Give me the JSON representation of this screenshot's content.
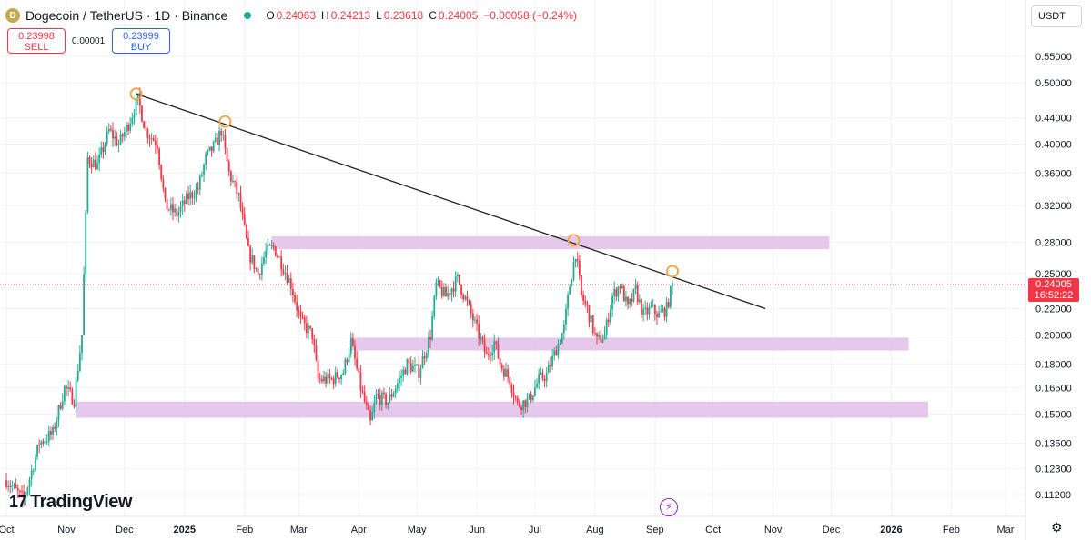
{
  "header": {
    "symbol": "Dogecoin / TetherUS · 1D · Binance",
    "ohlc": [
      {
        "k": "O",
        "v": "0.24063"
      },
      {
        "k": "H",
        "v": "0.24213"
      },
      {
        "k": "L",
        "v": "0.23618"
      },
      {
        "k": "C",
        "v": "0.24005"
      }
    ],
    "change": "−0.00058 (−0.24%)"
  },
  "trade": {
    "sell_price": "0.23998",
    "sell_label": "SELL",
    "spread": "0.00001",
    "buy_price": "0.23999",
    "buy_label": "BUY"
  },
  "currency": "USDT",
  "last_price": {
    "value": "0.24005",
    "countdown": "16:52:22"
  },
  "brand": "TradingView",
  "colors": {
    "up": "#22ab94",
    "down": "#f23645",
    "zone": "#e1bee7",
    "trendline": "#222222",
    "marker": "#f5a142"
  },
  "chart_data": {
    "type": "candlestick",
    "y_scale": "log",
    "ylim": [
      0.105,
      0.58
    ],
    "x_range": [
      "2024-10-01",
      "2026-03-31"
    ],
    "y_ticks": [
      "0.55000",
      "0.50000",
      "0.44000",
      "0.40000",
      "0.36000",
      "0.32000",
      "0.28000",
      "0.25000",
      "0.22000",
      "0.20000",
      "0.18000",
      "0.16500",
      "0.15000",
      "0.13500",
      "0.12300",
      "0.11200"
    ],
    "x_ticks": [
      {
        "date": "2024-10-01",
        "label": "Oct"
      },
      {
        "date": "2024-11-01",
        "label": "Nov"
      },
      {
        "date": "2024-12-01",
        "label": "Dec"
      },
      {
        "date": "2025-01-01",
        "label": "2025"
      },
      {
        "date": "2025-02-01",
        "label": "Feb"
      },
      {
        "date": "2025-03-01",
        "label": "Mar"
      },
      {
        "date": "2025-04-01",
        "label": "Apr"
      },
      {
        "date": "2025-05-01",
        "label": "May"
      },
      {
        "date": "2025-06-01",
        "label": "Jun"
      },
      {
        "date": "2025-07-01",
        "label": "Jul"
      },
      {
        "date": "2025-08-01",
        "label": "Aug"
      },
      {
        "date": "2025-09-01",
        "label": "Sep"
      },
      {
        "date": "2025-10-01",
        "label": "Oct"
      },
      {
        "date": "2025-11-01",
        "label": "Nov"
      },
      {
        "date": "2025-12-01",
        "label": "Dec"
      },
      {
        "date": "2026-01-01",
        "label": "2026"
      },
      {
        "date": "2026-02-01",
        "label": "Feb"
      },
      {
        "date": "2026-03-01",
        "label": "Mar"
      }
    ],
    "price_path": [
      [
        "2024-10-01",
        0.118
      ],
      [
        "2024-10-10",
        0.11
      ],
      [
        "2024-10-18",
        0.135
      ],
      [
        "2024-10-25",
        0.14
      ],
      [
        "2024-10-31",
        0.165
      ],
      [
        "2024-11-05",
        0.158
      ],
      [
        "2024-11-09",
        0.2
      ],
      [
        "2024-11-12",
        0.38
      ],
      [
        "2024-11-17",
        0.37
      ],
      [
        "2024-11-23",
        0.42
      ],
      [
        "2024-11-28",
        0.4
      ],
      [
        "2024-12-03",
        0.43
      ],
      [
        "2024-12-08",
        0.47
      ],
      [
        "2024-12-12",
        0.42
      ],
      [
        "2024-12-18",
        0.4
      ],
      [
        "2024-12-22",
        0.32
      ],
      [
        "2024-12-28",
        0.31
      ],
      [
        "2025-01-03",
        0.33
      ],
      [
        "2025-01-08",
        0.34
      ],
      [
        "2025-01-12",
        0.38
      ],
      [
        "2025-01-17",
        0.4
      ],
      [
        "2025-01-20",
        0.42
      ],
      [
        "2025-01-24",
        0.36
      ],
      [
        "2025-01-29",
        0.33
      ],
      [
        "2025-02-03",
        0.27
      ],
      [
        "2025-02-08",
        0.25
      ],
      [
        "2025-02-12",
        0.27
      ],
      [
        "2025-02-16",
        0.275
      ],
      [
        "2025-02-20",
        0.26
      ],
      [
        "2025-02-25",
        0.24
      ],
      [
        "2025-03-02",
        0.21
      ],
      [
        "2025-03-08",
        0.2
      ],
      [
        "2025-03-11",
        0.17
      ],
      [
        "2025-03-18",
        0.17
      ],
      [
        "2025-03-24",
        0.175
      ],
      [
        "2025-03-28",
        0.195
      ],
      [
        "2025-04-02",
        0.165
      ],
      [
        "2025-04-07",
        0.145
      ],
      [
        "2025-04-10",
        0.16
      ],
      [
        "2025-04-16",
        0.157
      ],
      [
        "2025-04-22",
        0.17
      ],
      [
        "2025-04-26",
        0.18
      ],
      [
        "2025-05-02",
        0.175
      ],
      [
        "2025-05-08",
        0.2
      ],
      [
        "2025-05-11",
        0.24
      ],
      [
        "2025-05-16",
        0.23
      ],
      [
        "2025-05-22",
        0.245
      ],
      [
        "2025-05-28",
        0.22
      ],
      [
        "2025-06-02",
        0.2
      ],
      [
        "2025-06-06",
        0.185
      ],
      [
        "2025-06-10",
        0.195
      ],
      [
        "2025-06-13",
        0.18
      ],
      [
        "2025-06-18",
        0.17
      ],
      [
        "2025-06-22",
        0.155
      ],
      [
        "2025-06-28",
        0.158
      ],
      [
        "2025-07-03",
        0.17
      ],
      [
        "2025-07-07",
        0.173
      ],
      [
        "2025-07-12",
        0.19
      ],
      [
        "2025-07-16",
        0.205
      ],
      [
        "2025-07-19",
        0.24
      ],
      [
        "2025-07-22",
        0.27
      ],
      [
        "2025-07-25",
        0.23
      ],
      [
        "2025-07-28",
        0.22
      ],
      [
        "2025-08-02",
        0.195
      ],
      [
        "2025-08-06",
        0.2
      ],
      [
        "2025-08-10",
        0.23
      ],
      [
        "2025-08-14",
        0.24
      ],
      [
        "2025-08-18",
        0.22
      ],
      [
        "2025-08-22",
        0.235
      ],
      [
        "2025-08-26",
        0.215
      ],
      [
        "2025-08-30",
        0.22
      ],
      [
        "2025-09-03",
        0.215
      ],
      [
        "2025-09-07",
        0.22
      ],
      [
        "2025-09-10",
        0.24
      ]
    ],
    "trendline": {
      "from": [
        "2024-12-07",
        0.48
      ],
      "to": [
        "2025-10-28",
        0.22
      ]
    },
    "touch_points": [
      [
        "2024-12-07",
        0.48
      ],
      [
        "2025-01-22",
        0.434
      ],
      [
        "2025-07-21",
        0.282
      ],
      [
        "2025-09-10",
        0.252
      ]
    ],
    "zones": [
      {
        "x0": "2025-02-15",
        "x1": "2025-11-30",
        "y0": 0.273,
        "y1": 0.286
      },
      {
        "x0": "2025-03-28",
        "x1": "2025-12-41",
        "y0": 0.189,
        "y1": 0.198
      },
      {
        "x0": "2024-11-06",
        "x1": "2025-12-51",
        "y0": 0.148,
        "y1": 0.157
      }
    ],
    "last_price_line": 0.24005
  }
}
